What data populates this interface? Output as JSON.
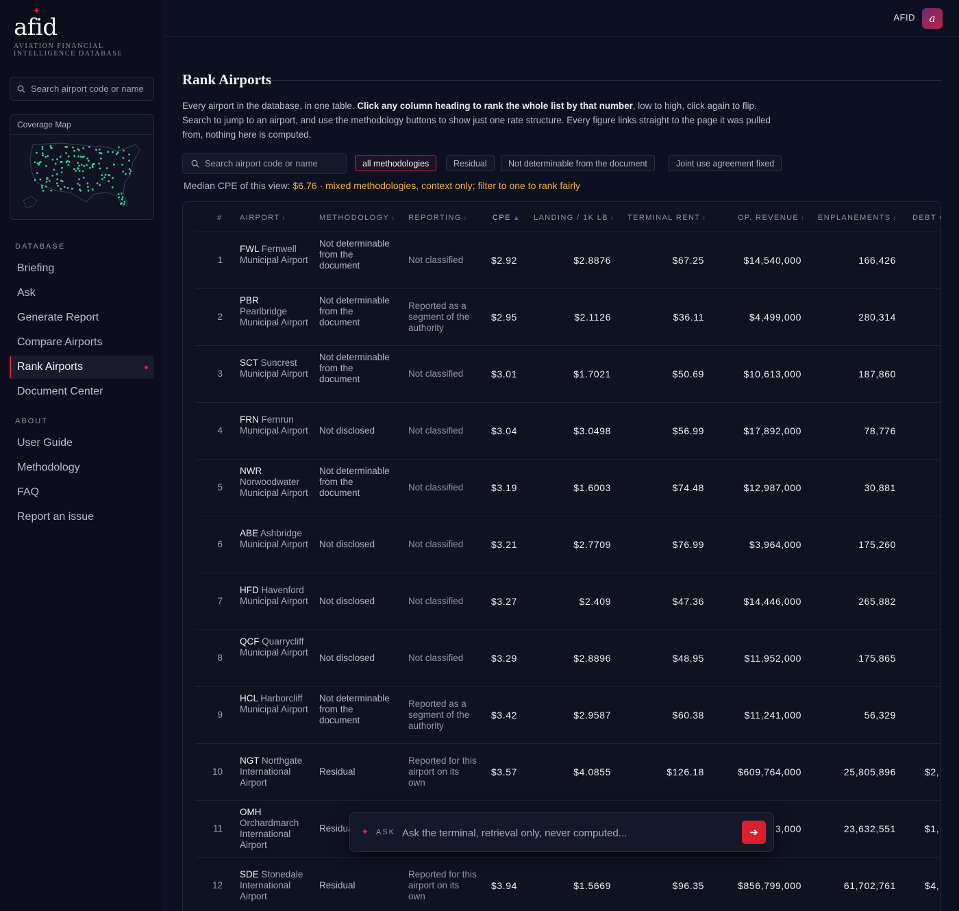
{
  "brand": {
    "name": "afid",
    "subtitle": "AVIATION FINANCIAL INTELLIGENCE DATABASE"
  },
  "sidebar": {
    "search_placeholder": "Search airport code or name",
    "coverage_title": "Coverage Map",
    "sections": [
      {
        "title": "DATABASE",
        "items": [
          "Briefing",
          "Ask",
          "Generate Report",
          "Compare Airports",
          "Rank Airports",
          "Document Center"
        ]
      },
      {
        "title": "ABOUT",
        "items": [
          "User Guide",
          "Methodology",
          "FAQ",
          "Report an issue"
        ]
      }
    ],
    "active_item": "Rank Airports"
  },
  "topbar": {
    "label": "AFID",
    "avatar": "a"
  },
  "page": {
    "title": "Rank Airports",
    "intro_part1": "Every airport in the database, in one table. ",
    "intro_bold": "Click any column heading to rank the whole list by that number",
    "intro_part2": ", low to high, click again to flip. Search to jump to an airport, and use the methodology buttons to show just one rate structure. Every figure links straight to the page it was pulled from, nothing here is computed.",
    "search_placeholder": "Search airport code or name",
    "filters": [
      "all methodologies",
      "Residual",
      "Not determinable from the document",
      "Joint use agreement fixed"
    ],
    "active_filter": "all methodologies",
    "median_label": "Median CPE of this view: ",
    "median_value": "$6.76",
    "median_note": " · mixed methodologies, context only; filter to one to rank fairly"
  },
  "table": {
    "columns": [
      "#",
      "AIRPORT",
      "METHODOLOGY",
      "REPORTING",
      "CPE",
      "LANDING / 1K LB",
      "TERMINAL RENT",
      "OP. REVENUE",
      "ENPLANEMENTS",
      "DEBT O"
    ],
    "sort_column": "CPE",
    "sort_direction": "ascending",
    "rows": [
      {
        "rank": "1",
        "code": "FWL",
        "name": "Fernwell Municipal Airport",
        "methodology": "Not determinable from the document",
        "reporting": "Not classified",
        "cpe": "$2.92",
        "landing": "$2.8876",
        "terminal_rent": "$67.25",
        "op_revenue": "$14,540,000",
        "enplanements": "166,426",
        "debt": ""
      },
      {
        "rank": "2",
        "code": "PBR",
        "name": "Pearlbridge Municipal Airport",
        "methodology": "Not determinable from the document",
        "reporting": "Reported as a segment of the authority",
        "cpe": "$2.95",
        "landing": "$2.1126",
        "terminal_rent": "$36.11",
        "op_revenue": "$4,499,000",
        "enplanements": "280,314",
        "debt": ""
      },
      {
        "rank": "3",
        "code": "SCT",
        "name": "Suncrest Municipal Airport",
        "methodology": "Not determinable from the document",
        "reporting": "Not classified",
        "cpe": "$3.01",
        "landing": "$1.7021",
        "terminal_rent": "$50.69",
        "op_revenue": "$10,613,000",
        "enplanements": "187,860",
        "debt": ""
      },
      {
        "rank": "4",
        "code": "FRN",
        "name": "Fernrun Municipal Airport",
        "methodology": "Not disclosed",
        "reporting": "Not classified",
        "cpe": "$3.04",
        "landing": "$3.0498",
        "terminal_rent": "$56.99",
        "op_revenue": "$17,892,000",
        "enplanements": "78,776",
        "debt": ""
      },
      {
        "rank": "5",
        "code": "NWR",
        "name": "Norwoodwater Municipal Airport",
        "methodology": "Not determinable from the document",
        "reporting": "Not classified",
        "cpe": "$3.19",
        "landing": "$1.6003",
        "terminal_rent": "$74.48",
        "op_revenue": "$12,987,000",
        "enplanements": "30,881",
        "debt": ""
      },
      {
        "rank": "6",
        "code": "ABE",
        "name": "Ashbridge Municipal Airport",
        "methodology": "Not disclosed",
        "reporting": "Not classified",
        "cpe": "$3.21",
        "landing": "$2.7709",
        "terminal_rent": "$76.99",
        "op_revenue": "$3,964,000",
        "enplanements": "175,260",
        "debt": ""
      },
      {
        "rank": "7",
        "code": "HFD",
        "name": "Havenford Municipal Airport",
        "methodology": "Not disclosed",
        "reporting": "Not classified",
        "cpe": "$3.27",
        "landing": "$2.409",
        "terminal_rent": "$47.36",
        "op_revenue": "$14,446,000",
        "enplanements": "265,882",
        "debt": ""
      },
      {
        "rank": "8",
        "code": "QCF",
        "name": "Quarrycliff Municipal Airport",
        "methodology": "Not disclosed",
        "reporting": "Not classified",
        "cpe": "$3.29",
        "landing": "$2.8896",
        "terminal_rent": "$48.95",
        "op_revenue": "$11,952,000",
        "enplanements": "175,865",
        "debt": ""
      },
      {
        "rank": "9",
        "code": "HCL",
        "name": "Harborcliff Municipal Airport",
        "methodology": "Not determinable from the document",
        "reporting": "Reported as a segment of the authority",
        "cpe": "$3.42",
        "landing": "$2.9587",
        "terminal_rent": "$60.38",
        "op_revenue": "$11,241,000",
        "enplanements": "56,329",
        "debt": ""
      },
      {
        "rank": "10",
        "code": "NGT",
        "name": "Northgate International Airport",
        "methodology": "Residual",
        "reporting": "Reported for this airport on its own",
        "cpe": "$3.57",
        "landing": "$4.0855",
        "terminal_rent": "$126.18",
        "op_revenue": "$609,764,000",
        "enplanements": "25,805,896",
        "debt": "$2,"
      },
      {
        "rank": "11",
        "code": "OMH",
        "name": "Orchardmarch International Airport",
        "methodology": "Residual",
        "reporting": "Reported for",
        "cpe": "",
        "landing": "",
        "terminal_rent": "",
        "op_revenue": "3,000",
        "enplanements": "23,632,551",
        "debt": "$1,"
      },
      {
        "rank": "12",
        "code": "SDE",
        "name": "Stonedale International Airport",
        "methodology": "Residual",
        "reporting": "Reported for this airport on its own",
        "cpe": "$3.94",
        "landing": "$1.5669",
        "terminal_rent": "$96.35",
        "op_revenue": "$856,799,000",
        "enplanements": "61,702,761",
        "debt": "$4,"
      }
    ]
  },
  "ask": {
    "label": "ASK",
    "placeholder": "Ask the terminal, retrieval only, never computed..."
  },
  "colors": {
    "accent": "#e0243f",
    "highlight": "#f2b233",
    "sort_arrow": "#3c63d8"
  },
  "icons": {
    "search": "magnifier",
    "ask_star": "sparkle",
    "ask_submit": "arrow-right"
  }
}
